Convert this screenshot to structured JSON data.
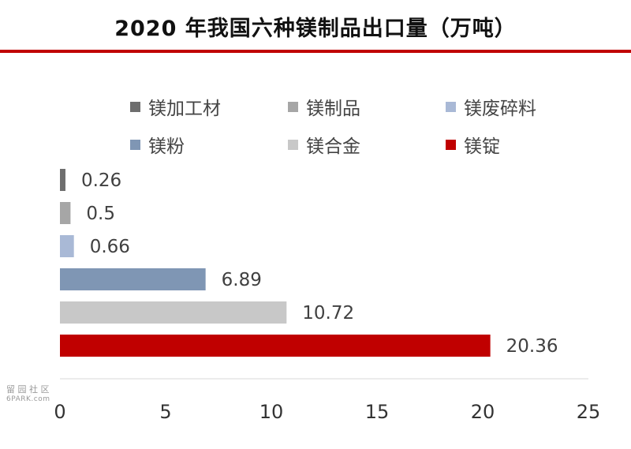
{
  "title": "2020 年我国六种镁制品出口量（万吨）",
  "watermark": {
    "line1": "留 园 社 区",
    "line2": "6PARK.com"
  },
  "chart_data": {
    "type": "bar",
    "orientation": "horizontal",
    "title": "2020 年我国六种镁制品出口量（万吨）",
    "categories": [
      "镁加工材",
      "镁制品",
      "镁废碎料",
      "镁粉",
      "镁合金",
      "镁锭"
    ],
    "values": [
      0.26,
      0.5,
      0.66,
      6.89,
      10.72,
      20.36
    ],
    "value_labels": [
      "0.26",
      "0.5",
      "0.66",
      "6.89",
      "10.72",
      "20.36"
    ],
    "colors": [
      "#6e6e6e",
      "#a6a6a6",
      "#a9b9d6",
      "#7f96b4",
      "#c8c8c8",
      "#c00000"
    ],
    "xlim": [
      0,
      25
    ],
    "xticks": [
      "0",
      "5",
      "10",
      "15",
      "20",
      "25"
    ],
    "legend_position": "top",
    "grid": false
  }
}
